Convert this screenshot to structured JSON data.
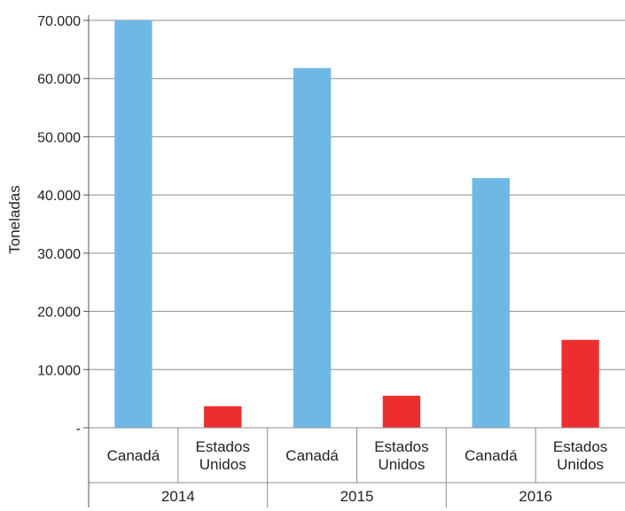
{
  "chart_data": {
    "type": "bar",
    "ylabel": "Toneladas",
    "ylim": [
      0,
      70000
    ],
    "yticks": [
      "-",
      "10.000",
      "20.000",
      "30.000",
      "40.000",
      "50.000",
      "60.000",
      "70.000"
    ],
    "grid": true,
    "groups": [
      {
        "year": "2014",
        "categories": [
          {
            "label": "Canadá",
            "value": 70000,
            "color": "#6EB8E6"
          },
          {
            "label": "Estados Unidos",
            "value": 3700,
            "color": "#EE2E2E"
          }
        ]
      },
      {
        "year": "2015",
        "categories": [
          {
            "label": "Canadá",
            "value": 61800,
            "color": "#6EB8E6"
          },
          {
            "label": "Estados Unidos",
            "value": 5500,
            "color": "#EE2E2E"
          }
        ]
      },
      {
        "year": "2016",
        "categories": [
          {
            "label": "Canadá",
            "value": 42900,
            "color": "#6EB8E6"
          },
          {
            "label": "Estados Unidos",
            "value": 15100,
            "color": "#EE2E2E"
          }
        ]
      }
    ]
  }
}
